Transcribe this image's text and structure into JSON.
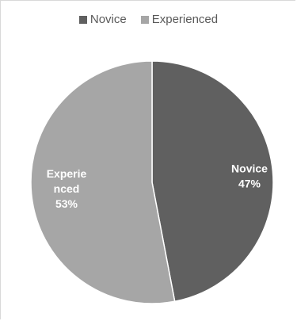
{
  "chart_data": {
    "type": "pie",
    "title": "",
    "legend_position": "top",
    "slices": [
      {
        "name": "Novice",
        "value": 47,
        "color": "#606060",
        "label_lines": [
          "Novice",
          "47%"
        ]
      },
      {
        "name": "Experienced",
        "value": 53,
        "color": "#a6a6a6",
        "label_lines": [
          "Experie",
          "nced",
          "53%"
        ]
      }
    ]
  }
}
